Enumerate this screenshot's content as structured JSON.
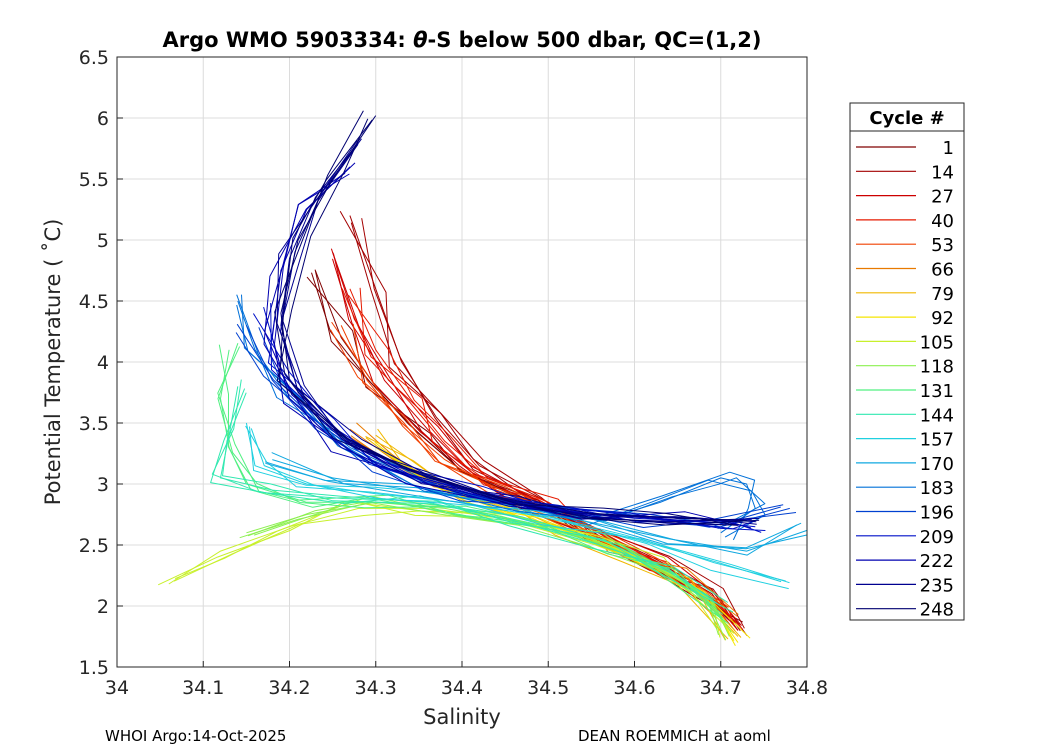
{
  "chart_data": {
    "type": "line",
    "title_prefix": "Argo WMO 5903334: ",
    "title_theta": "θ",
    "title_suffix": "-S below 500 dbar,  QC=(1,2)",
    "xlabel": "Salinity",
    "ylabel": "Potential Temperature ( ˚C)",
    "xlim": [
      34,
      34.8
    ],
    "ylim": [
      1.5,
      6.5
    ],
    "x_ticks": [
      "34",
      "34.1",
      "34.2",
      "34.3",
      "34.4",
      "34.5",
      "34.6",
      "34.7",
      "34.8"
    ],
    "y_ticks": [
      "1.5",
      "2",
      "2.5",
      "3",
      "3.5",
      "4",
      "4.5",
      "5",
      "5.5",
      "6",
      "6.5"
    ],
    "grid": true,
    "legend_position": "right",
    "legend_title": "Cycle #",
    "legend": [
      {
        "label": "1",
        "color": "#800000"
      },
      {
        "label": "14",
        "color": "#a30000"
      },
      {
        "label": "27",
        "color": "#cc0000"
      },
      {
        "label": "40",
        "color": "#e61a00"
      },
      {
        "label": "53",
        "color": "#f04000"
      },
      {
        "label": "66",
        "color": "#e87a00"
      },
      {
        "label": "79",
        "color": "#f0b800"
      },
      {
        "label": "92",
        "color": "#f5e600"
      },
      {
        "label": "105",
        "color": "#c8f02c"
      },
      {
        "label": "118",
        "color": "#8cf050"
      },
      {
        "label": "131",
        "color": "#50f080"
      },
      {
        "label": "144",
        "color": "#30e8b0"
      },
      {
        "label": "157",
        "color": "#20d0e0"
      },
      {
        "label": "170",
        "color": "#10a8e0"
      },
      {
        "label": "183",
        "color": "#0070d8"
      },
      {
        "label": "196",
        "color": "#0040d0"
      },
      {
        "label": "209",
        "color": "#0010c8"
      },
      {
        "label": "222",
        "color": "#0000b0"
      },
      {
        "label": "235",
        "color": "#000090"
      },
      {
        "label": "248",
        "color": "#000070"
      }
    ],
    "profiles": [
      {
        "cycle": 1,
        "color": "#800000",
        "points": [
          [
            34.23,
            4.75
          ],
          [
            34.26,
            4.2
          ],
          [
            34.3,
            3.8
          ],
          [
            34.35,
            3.45
          ],
          [
            34.4,
            3.1
          ],
          [
            34.48,
            2.85
          ],
          [
            34.55,
            2.6
          ],
          [
            34.62,
            2.35
          ],
          [
            34.68,
            2.1
          ],
          [
            34.72,
            1.85
          ]
        ]
      },
      {
        "cycle": 14,
        "color": "#a30000",
        "points": [
          [
            34.27,
            5.2
          ],
          [
            34.3,
            4.6
          ],
          [
            34.33,
            4.0
          ],
          [
            34.37,
            3.55
          ],
          [
            34.42,
            3.15
          ],
          [
            34.5,
            2.85
          ],
          [
            34.56,
            2.6
          ],
          [
            34.63,
            2.35
          ],
          [
            34.69,
            2.1
          ],
          [
            34.72,
            1.8
          ]
        ]
      },
      {
        "cycle": 27,
        "color": "#cc0000",
        "points": [
          [
            34.25,
            4.9
          ],
          [
            34.28,
            4.3
          ],
          [
            34.31,
            3.85
          ],
          [
            34.36,
            3.45
          ],
          [
            34.41,
            3.1
          ],
          [
            34.48,
            2.85
          ],
          [
            34.56,
            2.6
          ],
          [
            34.63,
            2.35
          ],
          [
            34.69,
            2.05
          ],
          [
            34.72,
            1.8
          ]
        ]
      },
      {
        "cycle": 40,
        "color": "#e61a00",
        "points": [
          [
            34.27,
            4.6
          ],
          [
            34.3,
            4.1
          ],
          [
            34.34,
            3.7
          ],
          [
            34.38,
            3.35
          ],
          [
            34.43,
            3.05
          ],
          [
            34.5,
            2.85
          ],
          [
            34.57,
            2.55
          ],
          [
            34.64,
            2.3
          ],
          [
            34.7,
            2.0
          ],
          [
            34.72,
            1.85
          ]
        ]
      },
      {
        "cycle": 53,
        "color": "#f04000",
        "points": [
          [
            34.26,
            4.3
          ],
          [
            34.29,
            3.85
          ],
          [
            34.33,
            3.5
          ],
          [
            34.38,
            3.2
          ],
          [
            34.44,
            2.95
          ],
          [
            34.5,
            2.8
          ],
          [
            34.57,
            2.5
          ],
          [
            34.64,
            2.3
          ],
          [
            34.7,
            2.0
          ]
        ]
      },
      {
        "cycle": 66,
        "color": "#e87a00",
        "points": [
          [
            34.27,
            3.45
          ],
          [
            34.32,
            3.2
          ],
          [
            34.38,
            3.0
          ],
          [
            34.45,
            2.85
          ],
          [
            34.52,
            2.7
          ],
          [
            34.58,
            2.5
          ],
          [
            34.65,
            2.25
          ],
          [
            34.71,
            1.9
          ]
        ]
      },
      {
        "cycle": 79,
        "color": "#f0b800",
        "points": [
          [
            34.3,
            3.4
          ],
          [
            34.35,
            3.15
          ],
          [
            34.4,
            2.9
          ],
          [
            34.46,
            2.75
          ],
          [
            34.52,
            2.6
          ],
          [
            34.6,
            2.4
          ],
          [
            34.66,
            2.2
          ],
          [
            34.72,
            1.75
          ]
        ]
      },
      {
        "cycle": 92,
        "color": "#f5e600",
        "points": [
          [
            34.3,
            3.3
          ],
          [
            34.36,
            3.05
          ],
          [
            34.42,
            2.85
          ],
          [
            34.48,
            2.7
          ],
          [
            34.55,
            2.55
          ],
          [
            34.62,
            2.35
          ],
          [
            34.68,
            2.1
          ],
          [
            34.72,
            1.7
          ]
        ]
      },
      {
        "cycle": 105,
        "color": "#c8f02c",
        "points": [
          [
            34.06,
            2.18
          ],
          [
            34.12,
            2.45
          ],
          [
            34.2,
            2.65
          ],
          [
            34.28,
            2.8
          ],
          [
            34.36,
            2.8
          ],
          [
            34.45,
            2.72
          ],
          [
            34.55,
            2.55
          ],
          [
            34.62,
            2.35
          ],
          [
            34.68,
            2.1
          ],
          [
            34.71,
            1.8
          ]
        ]
      },
      {
        "cycle": 118,
        "color": "#8cf050",
        "points": [
          [
            34.15,
            2.6
          ],
          [
            34.22,
            2.75
          ],
          [
            34.3,
            2.85
          ],
          [
            34.38,
            2.8
          ],
          [
            34.46,
            2.7
          ],
          [
            34.55,
            2.55
          ],
          [
            34.63,
            2.3
          ],
          [
            34.69,
            2.05
          ],
          [
            34.71,
            1.75
          ]
        ]
      },
      {
        "cycle": 131,
        "color": "#50f080",
        "points": [
          [
            34.13,
            4.1
          ],
          [
            34.12,
            3.7
          ],
          [
            34.13,
            3.3
          ],
          [
            34.15,
            3.0
          ],
          [
            34.22,
            2.85
          ],
          [
            34.3,
            2.85
          ],
          [
            34.4,
            2.8
          ],
          [
            34.5,
            2.65
          ],
          [
            34.58,
            2.45
          ],
          [
            34.65,
            2.25
          ],
          [
            34.7,
            1.9
          ]
        ]
      },
      {
        "cycle": 144,
        "color": "#30e8b0",
        "points": [
          [
            34.14,
            3.8
          ],
          [
            34.13,
            3.4
          ],
          [
            34.12,
            3.05
          ],
          [
            34.18,
            2.95
          ],
          [
            34.26,
            2.9
          ],
          [
            34.36,
            2.85
          ],
          [
            34.46,
            2.7
          ],
          [
            34.56,
            2.5
          ],
          [
            34.64,
            2.3
          ],
          [
            34.7,
            2.0
          ]
        ]
      },
      {
        "cycle": 157,
        "color": "#20d0e0",
        "points": [
          [
            34.15,
            3.5
          ],
          [
            34.16,
            3.15
          ],
          [
            34.22,
            3.0
          ],
          [
            34.3,
            2.92
          ],
          [
            34.4,
            2.85
          ],
          [
            34.5,
            2.72
          ],
          [
            34.6,
            2.55
          ],
          [
            34.7,
            2.35
          ],
          [
            34.77,
            2.2
          ]
        ]
      },
      {
        "cycle": 170,
        "color": "#10a8e0",
        "points": [
          [
            34.18,
            3.2
          ],
          [
            34.25,
            3.05
          ],
          [
            34.34,
            2.95
          ],
          [
            34.44,
            2.85
          ],
          [
            34.54,
            2.7
          ],
          [
            34.64,
            2.55
          ],
          [
            34.73,
            2.45
          ],
          [
            34.8,
            2.62
          ]
        ]
      },
      {
        "cycle": 183,
        "color": "#0070d8",
        "points": [
          [
            34.14,
            4.5
          ],
          [
            34.16,
            4.1
          ],
          [
            34.2,
            3.7
          ],
          [
            34.27,
            3.3
          ],
          [
            34.36,
            3.0
          ],
          [
            34.46,
            2.82
          ],
          [
            34.56,
            2.7
          ],
          [
            34.63,
            2.85
          ],
          [
            34.7,
            3.05
          ],
          [
            34.73,
            3.0
          ],
          [
            34.74,
            2.8
          ],
          [
            34.7,
            2.6
          ]
        ]
      },
      {
        "cycle": 196,
        "color": "#0040d0",
        "points": [
          [
            34.15,
            4.3
          ],
          [
            34.18,
            3.85
          ],
          [
            34.23,
            3.45
          ],
          [
            34.3,
            3.15
          ],
          [
            34.4,
            2.92
          ],
          [
            34.5,
            2.78
          ],
          [
            34.6,
            2.7
          ],
          [
            34.7,
            2.65
          ],
          [
            34.78,
            2.8
          ]
        ]
      },
      {
        "cycle": 209,
        "color": "#0010c8",
        "points": [
          [
            34.17,
            4.45
          ],
          [
            34.19,
            3.95
          ],
          [
            34.24,
            3.5
          ],
          [
            34.31,
            3.18
          ],
          [
            34.41,
            2.95
          ],
          [
            34.5,
            2.8
          ],
          [
            34.6,
            2.72
          ],
          [
            34.7,
            2.68
          ],
          [
            34.74,
            2.65
          ]
        ]
      },
      {
        "cycle": 222,
        "color": "#0000b0",
        "points": [
          [
            34.27,
            5.6
          ],
          [
            34.22,
            5.25
          ],
          [
            34.19,
            4.75
          ],
          [
            34.18,
            4.2
          ],
          [
            34.2,
            3.7
          ],
          [
            34.26,
            3.3
          ],
          [
            34.35,
            3.02
          ],
          [
            34.45,
            2.85
          ],
          [
            34.55,
            2.75
          ],
          [
            34.65,
            2.72
          ],
          [
            34.73,
            2.7
          ]
        ]
      },
      {
        "cycle": 235,
        "color": "#000090",
        "points": [
          [
            34.28,
            5.8
          ],
          [
            34.23,
            5.35
          ],
          [
            34.2,
            4.85
          ],
          [
            34.19,
            4.3
          ],
          [
            34.21,
            3.75
          ],
          [
            34.27,
            3.35
          ],
          [
            34.36,
            3.05
          ],
          [
            34.46,
            2.86
          ],
          [
            34.56,
            2.75
          ],
          [
            34.66,
            2.72
          ],
          [
            34.73,
            2.7
          ]
        ]
      },
      {
        "cycle": 248,
        "color": "#000070",
        "points": [
          [
            34.3,
            6.02
          ],
          [
            34.25,
            5.5
          ],
          [
            34.21,
            5.0
          ],
          [
            34.19,
            4.4
          ],
          [
            34.2,
            3.85
          ],
          [
            34.26,
            3.4
          ],
          [
            34.35,
            3.08
          ],
          [
            34.45,
            2.88
          ],
          [
            34.55,
            2.76
          ],
          [
            34.65,
            2.72
          ],
          [
            34.73,
            2.7
          ]
        ]
      }
    ]
  },
  "footer": {
    "left": "WHOI Argo:14-Oct-2025",
    "right": "DEAN ROEMMICH at aoml"
  }
}
